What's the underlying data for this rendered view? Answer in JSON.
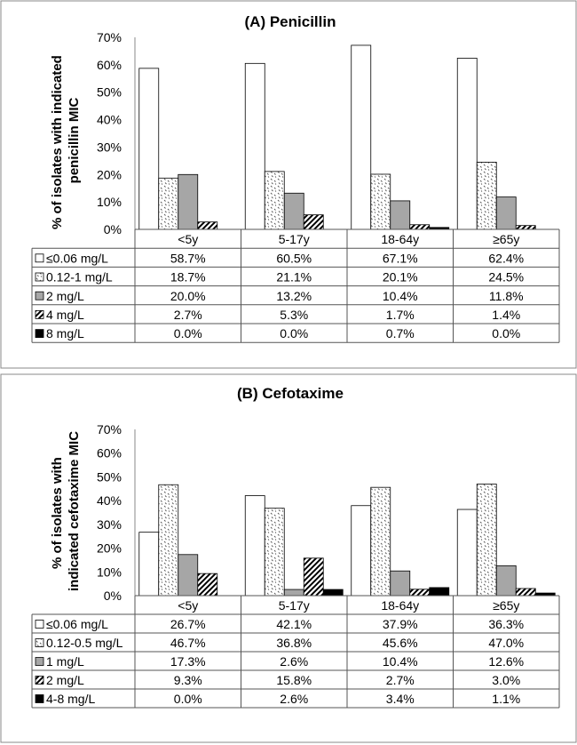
{
  "chart_data": [
    {
      "type": "bar",
      "title": "(A) Penicillin",
      "ylabel": "% of isolates with indicated penicillin MIC",
      "ylim": [
        0,
        70
      ],
      "yticks": [
        "0%",
        "10%",
        "20%",
        "30%",
        "40%",
        "50%",
        "60%",
        "70%"
      ],
      "categories": [
        "<5y",
        "5-17y",
        "18-64y",
        "≥65y"
      ],
      "series": [
        {
          "name": "≤0.06 mg/L",
          "pattern": "white",
          "values": [
            58.7,
            60.5,
            67.1,
            62.4
          ],
          "labels": [
            "58.7%",
            "60.5%",
            "67.1%",
            "62.4%"
          ]
        },
        {
          "name": "0.12-1 mg/L",
          "pattern": "dots",
          "values": [
            18.7,
            21.1,
            20.1,
            24.5
          ],
          "labels": [
            "18.7%",
            "21.1%",
            "20.1%",
            "24.5%"
          ]
        },
        {
          "name": "2 mg/L",
          "pattern": "gray",
          "values": [
            20.0,
            13.2,
            10.4,
            11.8
          ],
          "labels": [
            "20.0%",
            "13.2%",
            "10.4%",
            "11.8%"
          ]
        },
        {
          "name": "4 mg/L",
          "pattern": "hatch",
          "values": [
            2.7,
            5.3,
            1.7,
            1.4
          ],
          "labels": [
            "2.7%",
            "5.3%",
            "1.7%",
            "1.4%"
          ]
        },
        {
          "name": "8 mg/L",
          "pattern": "black",
          "values": [
            0.0,
            0.0,
            0.7,
            0.0
          ],
          "labels": [
            "0.0%",
            "0.0%",
            "0.7%",
            "0.0%"
          ]
        }
      ],
      "grid": false,
      "legend_placement": "data table below"
    },
    {
      "type": "bar",
      "title": "(B) Cefotaxime",
      "ylabel": "% of isolates with indicated cefotaxime MIC",
      "ylim": [
        0,
        70
      ],
      "yticks": [
        "0%",
        "10%",
        "20%",
        "30%",
        "40%",
        "50%",
        "60%",
        "70%"
      ],
      "categories": [
        "<5y",
        "5-17y",
        "18-64y",
        "≥65y"
      ],
      "series": [
        {
          "name": "≤0.06 mg/L",
          "pattern": "white",
          "values": [
            26.7,
            42.1,
            37.9,
            36.3
          ],
          "labels": [
            "26.7%",
            "42.1%",
            "37.9%",
            "36.3%"
          ]
        },
        {
          "name": "0.12-0.5 mg/L",
          "pattern": "dots",
          "values": [
            46.7,
            36.8,
            45.6,
            47.0
          ],
          "labels": [
            "46.7%",
            "36.8%",
            "45.6%",
            "47.0%"
          ]
        },
        {
          "name": "1 mg/L",
          "pattern": "gray",
          "values": [
            17.3,
            2.6,
            10.4,
            12.6
          ],
          "labels": [
            "17.3%",
            "2.6%",
            "10.4%",
            "12.6%"
          ]
        },
        {
          "name": "2 mg/L",
          "pattern": "hatch",
          "values": [
            9.3,
            15.8,
            2.7,
            3.0
          ],
          "labels": [
            "9.3%",
            "15.8%",
            "2.7%",
            "3.0%"
          ]
        },
        {
          "name": "4-8 mg/L",
          "pattern": "black",
          "values": [
            0.0,
            2.6,
            3.4,
            1.1
          ],
          "labels": [
            "0.0%",
            "2.6%",
            "3.4%",
            "1.1%"
          ]
        }
      ],
      "grid": false,
      "legend_placement": "data table below"
    }
  ],
  "colors": {
    "border": "#555555",
    "gray_fill": "#a6a6a6",
    "black_fill": "#000000",
    "white_fill": "#ffffff"
  }
}
